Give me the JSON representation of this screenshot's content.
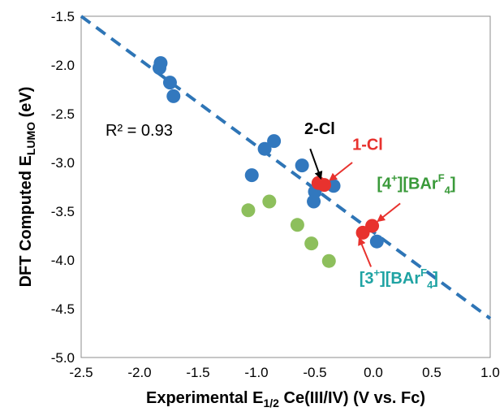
{
  "chart_data": {
    "type": "scatter",
    "xlabel": {
      "main": "Experimental E",
      "sub": "1/2",
      "rest": " Ce(III/IV) (V vs. Fc)"
    },
    "ylabel": {
      "main": "DFT Computed E",
      "sub": "LUMO",
      "rest": " (eV)"
    },
    "xlim": [
      -2.5,
      1.0
    ],
    "ylim": [
      -5.0,
      -1.5
    ],
    "xticks": [
      -2.5,
      -2.0,
      -1.5,
      -1.0,
      -0.5,
      0.0,
      0.5,
      1.0
    ],
    "xtick_labels": [
      "-2.5",
      "-2.0",
      "-1.5",
      "-1.0",
      "-0.5",
      "0.0",
      "0.5",
      "1.0"
    ],
    "yticks": [
      -1.5,
      -2.0,
      -2.5,
      -3.0,
      -3.5,
      -4.0,
      -4.5,
      -5.0
    ],
    "ytick_labels": [
      "-1.5",
      "-2.0",
      "-2.5",
      "-3.0",
      "-3.5",
      "-4.0",
      "-4.5",
      "-5.0"
    ],
    "grid": false,
    "r2_label": "R² = 0.93",
    "fit_line": {
      "x": [
        -2.5,
        1.0
      ],
      "y": [
        -1.5,
        -4.6
      ],
      "color": "#2E75B6"
    },
    "series": [
      {
        "color": "#3278BE",
        "points": [
          {
            "x": -1.82,
            "y": -1.98
          },
          {
            "x": -1.83,
            "y": -2.03
          },
          {
            "x": -1.74,
            "y": -2.18
          },
          {
            "x": -1.71,
            "y": -2.32
          },
          {
            "x": -0.93,
            "y": -2.86
          },
          {
            "x": -0.85,
            "y": -2.78
          },
          {
            "x": -1.04,
            "y": -3.13
          },
          {
            "x": -0.61,
            "y": -3.03
          },
          {
            "x": -0.5,
            "y": -3.3
          },
          {
            "x": -0.51,
            "y": -3.4
          },
          {
            "x": -0.34,
            "y": -3.24
          },
          {
            "x": 0.03,
            "y": -3.81
          }
        ]
      },
      {
        "color": "#8DBF5C",
        "points": [
          {
            "x": -1.07,
            "y": -3.49
          },
          {
            "x": -0.89,
            "y": -3.4
          },
          {
            "x": -0.65,
            "y": -3.64
          },
          {
            "x": -0.53,
            "y": -3.83
          },
          {
            "x": -0.38,
            "y": -4.01
          }
        ]
      },
      {
        "color": "#E8322E",
        "points": [
          {
            "x": -0.47,
            "y": -3.21
          },
          {
            "x": -0.42,
            "y": -3.23
          },
          {
            "x": -0.09,
            "y": -3.72
          },
          {
            "x": -0.01,
            "y": -3.65
          }
        ]
      }
    ],
    "annotations": [
      {
        "text": "2-Cl",
        "color": "#000000",
        "x": -0.59,
        "y": -2.71,
        "arrow_from": [
          -0.54,
          -2.86
        ],
        "arrow_to": [
          -0.45,
          -3.16
        ]
      },
      {
        "text": "1-Cl",
        "color": "#E8322E",
        "x": -0.18,
        "y": -2.87,
        "arrow_from": [
          -0.18,
          -3.0
        ],
        "arrow_to": [
          -0.37,
          -3.18
        ]
      },
      {
        "text": "[4⁺][BArF₄]",
        "label_main": "[4",
        "label_sup": "+",
        "label_mid": "][BAr",
        "label_sup2": "F",
        "label_sub": "4",
        "label_end": "]",
        "color": "#3A9A3A",
        "x": 0.03,
        "y": -3.27,
        "arrow_from": [
          0.23,
          -3.42
        ],
        "arrow_to": [
          0.04,
          -3.6
        ]
      },
      {
        "text": "[3⁺][BArF₄]",
        "label_main": "[3",
        "label_sup": "+",
        "label_mid": "][BAr",
        "label_sup2": "F",
        "label_sub": "4",
        "label_end": "]",
        "color": "#1FA3A3",
        "x": -0.12,
        "y": -4.24,
        "arrow_from": [
          -0.02,
          -4.07
        ],
        "arrow_to": [
          -0.12,
          -3.78
        ]
      }
    ]
  }
}
